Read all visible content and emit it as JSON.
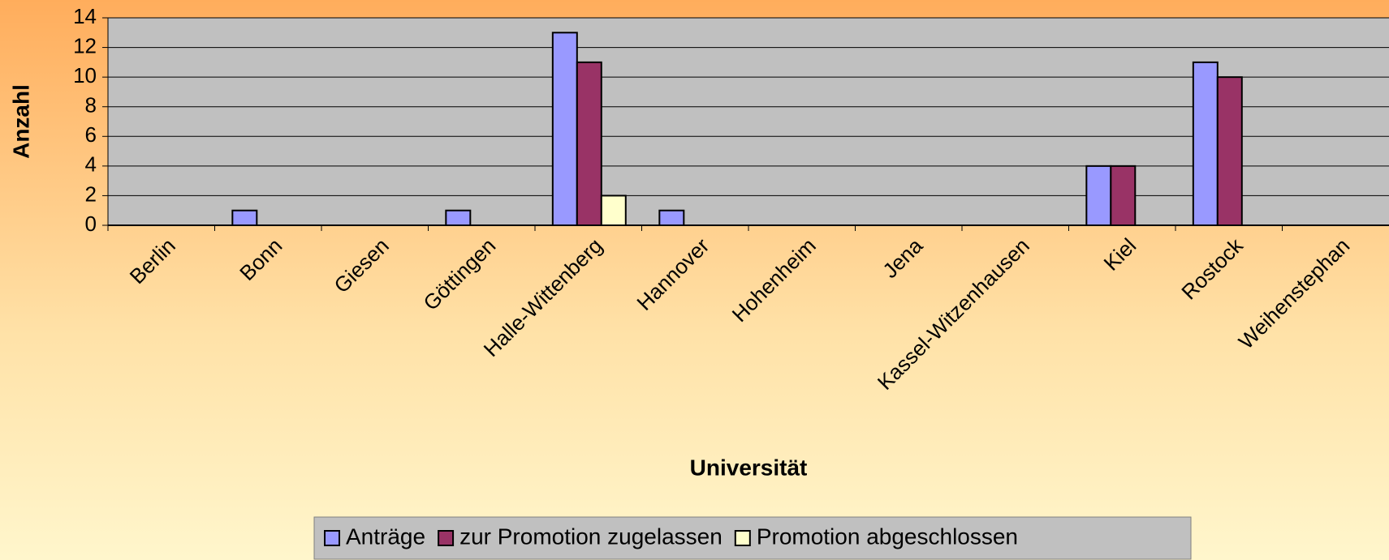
{
  "chart_data": {
    "type": "bar",
    "x_label": "Universität",
    "y_label": "Anzahl",
    "categories": [
      "Berlin",
      "Bonn",
      "Giesen",
      "Göttingen",
      "Halle-Wittenberg",
      "Hannover",
      "Hohenheim",
      "Jena",
      "Kassel-Witzenhausen",
      "Kiel",
      "Rostock",
      "Weihenstephan"
    ],
    "series": [
      {
        "name": "Anträge",
        "color": "#9999ff",
        "values": [
          0,
          1,
          0,
          1,
          13,
          1,
          0,
          0,
          0,
          4,
          11,
          0
        ]
      },
      {
        "name": "zur Promotion zugelassen",
        "color": "#993366",
        "values": [
          0,
          0,
          0,
          0,
          11,
          0,
          0,
          0,
          0,
          4,
          10,
          0
        ]
      },
      {
        "name": "Promotion abgeschlossen",
        "color": "#ffffcc",
        "values": [
          0,
          0,
          0,
          0,
          2,
          0,
          0,
          0,
          0,
          0,
          0,
          0
        ]
      }
    ],
    "ylim": [
      0,
      14
    ],
    "yticks": [
      0,
      2,
      4,
      6,
      8,
      10,
      12,
      14
    ],
    "grid": true,
    "legend": "bottom"
  }
}
